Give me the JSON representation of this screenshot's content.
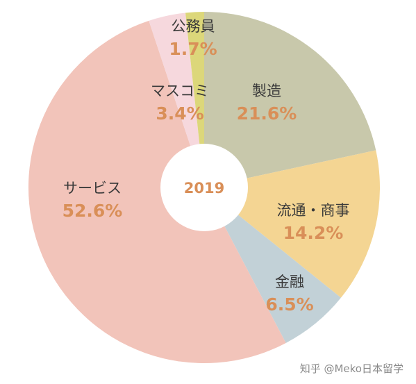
{
  "chart_data": {
    "type": "pie",
    "center_label": "2019",
    "slices": [
      {
        "label": "製造",
        "value": 21.6,
        "value_label": "21.6%",
        "color": "#c8c8ab"
      },
      {
        "label": "流通・商事",
        "value": 14.2,
        "value_label": "14.2%",
        "color": "#f4d593"
      },
      {
        "label": "金融",
        "value": 6.5,
        "value_label": "6.5%",
        "color": "#c2d1d7"
      },
      {
        "label": "サービス",
        "value": 52.6,
        "value_label": "52.6%",
        "color": "#f2c4ba"
      },
      {
        "label": "マスコミ",
        "value": 3.4,
        "value_label": "3.4%",
        "color": "#f6d8dd"
      },
      {
        "label": "公務員",
        "value": 1.7,
        "value_label": "1.7%",
        "color": "#dcd77a"
      }
    ]
  },
  "watermark": "知乎 @Meko日本留学"
}
